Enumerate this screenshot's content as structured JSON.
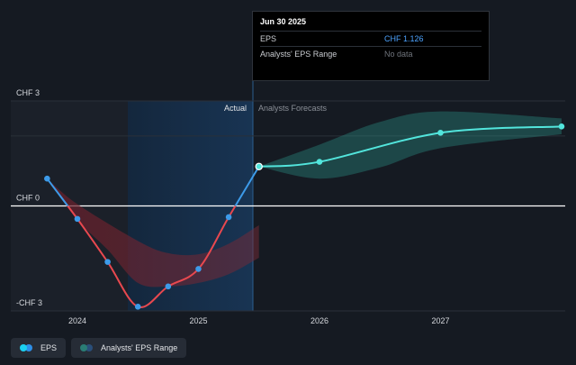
{
  "tooltip": {
    "date": "Jun 30 2025",
    "rows": [
      {
        "label": "EPS",
        "value": "CHF 1.126"
      },
      {
        "label": "Analysts' EPS Range",
        "value": "No data"
      }
    ]
  },
  "section_labels": {
    "actual": "Actual",
    "forecast": "Analysts Forecasts"
  },
  "legend": [
    {
      "label": "EPS",
      "colors": [
        "#1bd0f0",
        "#2e8fe8"
      ]
    },
    {
      "label": "Analysts' EPS Range",
      "colors": [
        "#2a7d75",
        "#2a4f7a"
      ]
    }
  ],
  "colors": {
    "background": "#151a22",
    "eps_actual": "#3d9be9",
    "eps_decline": "#e8484f",
    "eps_forecast": "#52e5dc",
    "range_forecast": "#2f9f8f",
    "range_decline": "#c83a44",
    "highlight_band": "#162c45",
    "zero_line": "#ffffff",
    "grid": "#2a3039"
  },
  "chart_data": {
    "type": "line",
    "y_ticks": [
      {
        "value": 3,
        "label": "CHF 3"
      },
      {
        "value": 0,
        "label": "CHF 0"
      },
      {
        "value": -3,
        "label": "-CHF 3"
      }
    ],
    "x_ticks": [
      {
        "value": 2024,
        "label": "2024"
      },
      {
        "value": 2025,
        "label": "2025"
      },
      {
        "value": 2026,
        "label": "2026"
      },
      {
        "value": 2027,
        "label": "2027"
      }
    ],
    "xlim": [
      2023.45,
      2028.03
    ],
    "ylim": [
      -3.0,
      3.0
    ],
    "highlight_range": [
      2024.5,
      2025.5
    ],
    "actual_end": 2025.5,
    "eps_actual": [
      {
        "x": 2023.75,
        "y": 0.78
      },
      {
        "x": 2024.0,
        "y": -0.37
      },
      {
        "x": 2024.25,
        "y": -1.6
      },
      {
        "x": 2024.5,
        "y": -2.88
      },
      {
        "x": 2024.75,
        "y": -2.3
      },
      {
        "x": 2025.0,
        "y": -1.8
      },
      {
        "x": 2025.25,
        "y": -0.32
      },
      {
        "x": 2025.5,
        "y": 1.126
      }
    ],
    "eps_forecast": [
      {
        "x": 2025.5,
        "y": 1.126
      },
      {
        "x": 2026.0,
        "y": 1.26
      },
      {
        "x": 2027.0,
        "y": 2.09
      },
      {
        "x": 2028.0,
        "y": 2.27
      }
    ],
    "forecast_range_upper": [
      {
        "x": 2025.5,
        "y": 1.126
      },
      {
        "x": 2026.0,
        "y": 1.75
      },
      {
        "x": 2026.5,
        "y": 2.4
      },
      {
        "x": 2027.0,
        "y": 2.7
      },
      {
        "x": 2028.0,
        "y": 2.5
      }
    ],
    "forecast_range_lower": [
      {
        "x": 2025.5,
        "y": 1.126
      },
      {
        "x": 2026.0,
        "y": 0.78
      },
      {
        "x": 2026.5,
        "y": 1.1
      },
      {
        "x": 2027.0,
        "y": 1.65
      },
      {
        "x": 2028.0,
        "y": 2.05
      }
    ],
    "early_range_upper": [
      {
        "x": 2023.75,
        "y": 0.78
      },
      {
        "x": 2024.0,
        "y": 0.05
      },
      {
        "x": 2024.5,
        "y": -1.0
      },
      {
        "x": 2024.75,
        "y": -1.35
      },
      {
        "x": 2025.0,
        "y": -1.38
      },
      {
        "x": 2025.25,
        "y": -1.08
      },
      {
        "x": 2025.5,
        "y": -0.55
      }
    ],
    "early_range_lower": [
      {
        "x": 2025.5,
        "y": -1.48
      },
      {
        "x": 2025.25,
        "y": -1.95
      },
      {
        "x": 2025.0,
        "y": -2.2
      },
      {
        "x": 2024.75,
        "y": -2.3
      },
      {
        "x": 2024.5,
        "y": -2.2
      },
      {
        "x": 2024.25,
        "y": -1.25
      },
      {
        "x": 2024.0,
        "y": -0.4
      },
      {
        "x": 2023.75,
        "y": 0.78
      }
    ]
  }
}
